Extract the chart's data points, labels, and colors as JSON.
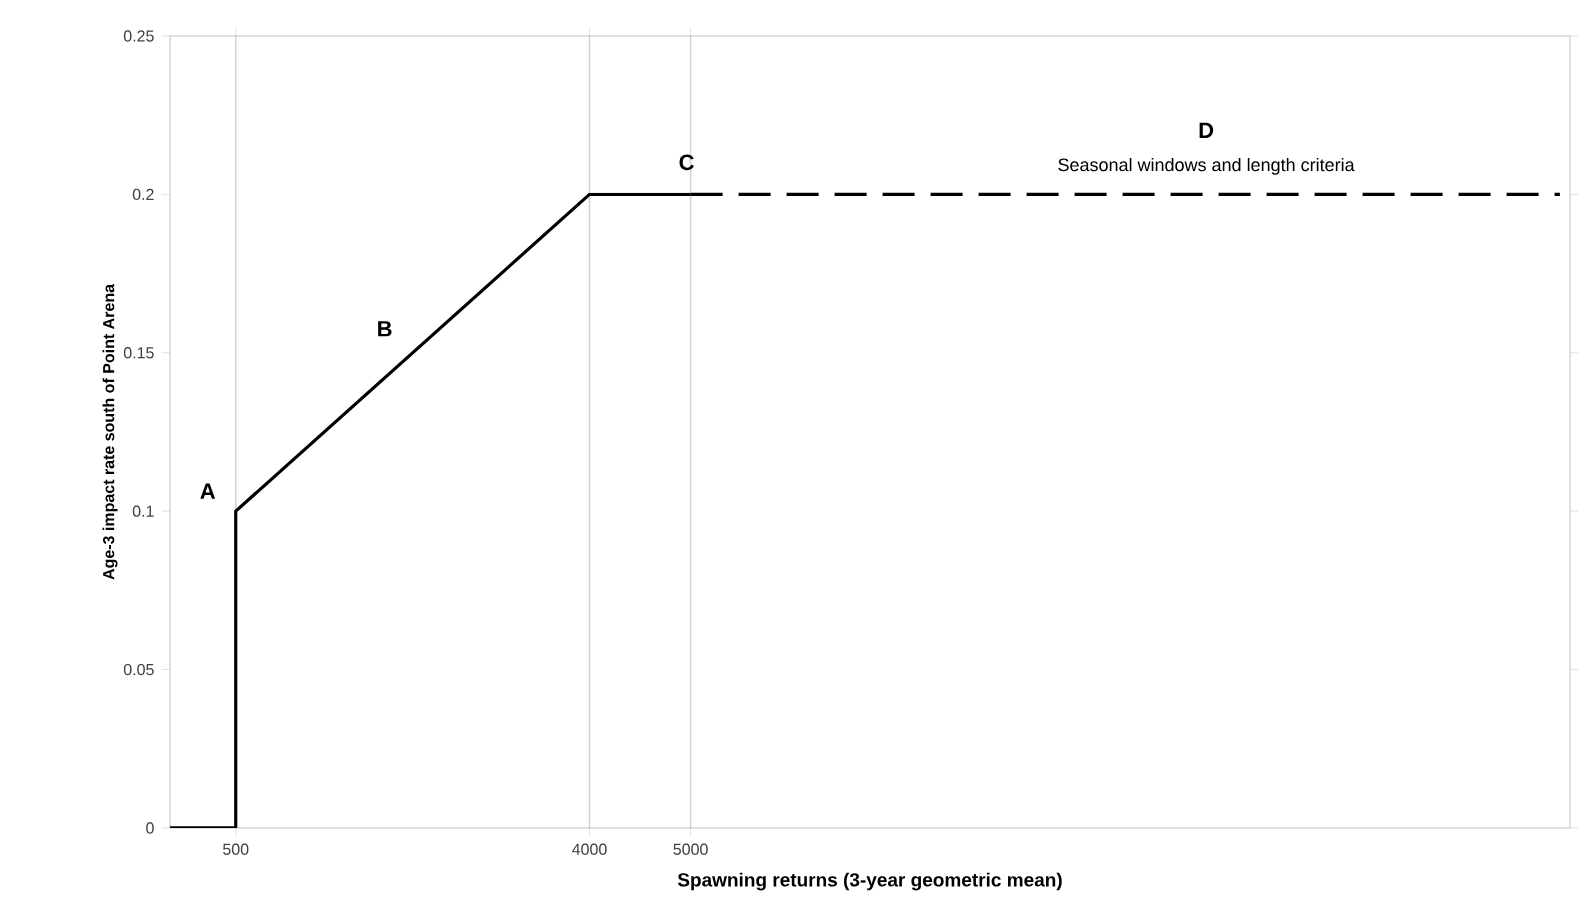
{
  "chart_data": {
    "type": "line",
    "xlabel": "Spawning returns (3-year geometric mean)",
    "ylabel": "Age-3 impact rate south of Point Arena",
    "series": [
      {
        "color": "#000000",
        "line_style": "solid",
        "x": [
          -150,
          500,
          500,
          4000,
          5000
        ],
        "values": [
          0,
          0,
          0.1,
          0.2,
          0.2
        ]
      },
      {
        "color": "#000000",
        "line_style": "dashed",
        "x": [
          5000,
          13600
        ],
        "values": [
          0.2,
          0.2
        ]
      }
    ],
    "xlim": [
      -150,
      13700
    ],
    "xticks": [
      500,
      4000,
      5000
    ],
    "ylim": [
      0,
      0.25
    ],
    "yticks": [
      0,
      0.05,
      0.1,
      0.15,
      0.2,
      0.25
    ],
    "grid": "x",
    "marker": "none",
    "annotations": [
      "A",
      "B",
      "C",
      "D",
      "Seasonal windows and length criteria"
    ]
  }
}
